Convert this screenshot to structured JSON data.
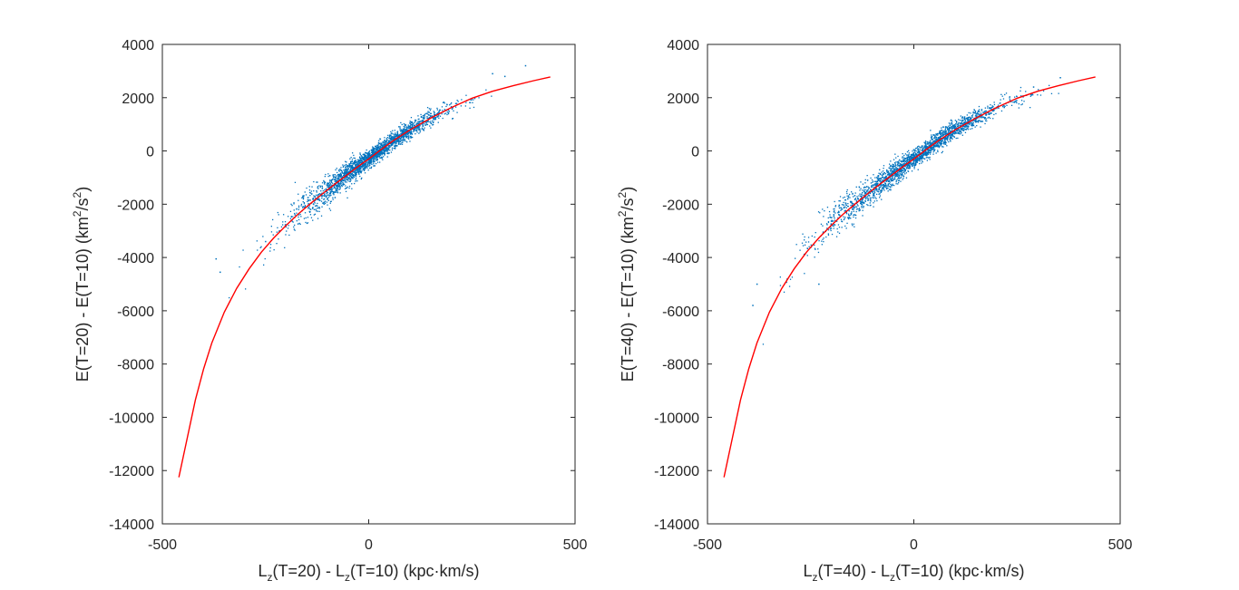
{
  "chart_data": [
    {
      "type": "scatter",
      "xlabel_parts": [
        "L",
        "z",
        "(T=20) - L",
        "z",
        "(T=10) (kpc·km/s)"
      ],
      "ylabel_parts": [
        "E(T=20) - E(T=10) (km",
        "2",
        "/s",
        "2",
        ")"
      ],
      "xlim": [
        -500,
        500
      ],
      "ylim": [
        -14000,
        4000
      ],
      "xticks": [
        -500,
        0,
        500
      ],
      "yticks": [
        -14000,
        -12000,
        -10000,
        -8000,
        -6000,
        -4000,
        -2000,
        0,
        2000,
        4000
      ],
      "xtick_labels": [
        "-500",
        "0",
        "500"
      ],
      "ytick_labels": [
        "-14000",
        "-12000",
        "-10000",
        "-8000",
        "-6000",
        "-4000",
        "-2000",
        "0",
        "2000",
        "4000"
      ],
      "grid": false,
      "series": [
        {
          "name": "particles",
          "kind": "scatter",
          "color": "#0072BD",
          "x_range": [
            -370,
            380
          ],
          "density_sigma_x": 90,
          "scatter": [
            {
              "x": -370,
              "y": -4050
            },
            {
              "x": -360,
              "y": -4550
            },
            {
              "x": -250,
              "y": -3400
            },
            {
              "x": 300,
              "y": 2900
            },
            {
              "x": 380,
              "y": 3200
            },
            {
              "x": 330,
              "y": 2800
            }
          ]
        },
        {
          "name": "fit",
          "kind": "line",
          "color": "#FF0000",
          "x": [
            -460,
            -440,
            -420,
            -400,
            -380,
            -350,
            -320,
            -290,
            -260,
            -230,
            -200,
            -170,
            -140,
            -110,
            -80,
            -50,
            -20,
            0,
            30,
            60,
            100,
            150,
            200,
            250,
            300,
            350,
            400,
            440
          ],
          "y": [
            -12250,
            -10800,
            -9350,
            -8180,
            -7200,
            -6050,
            -5160,
            -4430,
            -3800,
            -3260,
            -2790,
            -2360,
            -1960,
            -1580,
            -1220,
            -870,
            -520,
            -300,
            50,
            390,
            790,
            1230,
            1630,
            1980,
            2240,
            2450,
            2640,
            2780
          ]
        }
      ]
    },
    {
      "type": "scatter",
      "xlabel_parts": [
        "L",
        "z",
        "(T=40) - L",
        "z",
        "(T=10) (kpc·km/s)"
      ],
      "ylabel_parts": [
        "E(T=40) - E(T=10) (km",
        "2",
        "/s",
        "2",
        ")"
      ],
      "xlim": [
        -500,
        500
      ],
      "ylim": [
        -14000,
        4000
      ],
      "xticks": [
        -500,
        0,
        500
      ],
      "yticks": [
        -14000,
        -12000,
        -10000,
        -8000,
        -6000,
        -4000,
        -2000,
        0,
        2000,
        4000
      ],
      "xtick_labels": [
        "-500",
        "0",
        "500"
      ],
      "ytick_labels": [
        "-14000",
        "-12000",
        "-10000",
        "-8000",
        "-6000",
        "-4000",
        "-2000",
        "0",
        "2000",
        "4000"
      ],
      "grid": false,
      "series": [
        {
          "name": "particles",
          "kind": "scatter",
          "color": "#0072BD",
          "x_range": [
            -400,
            370
          ],
          "density_sigma_x": 110,
          "scatter": [
            {
              "x": -390,
              "y": -5800
            },
            {
              "x": -380,
              "y": -5000
            },
            {
              "x": -230,
              "y": -5000
            },
            {
              "x": 355,
              "y": 2750
            },
            {
              "x": 290,
              "y": 2400
            }
          ]
        },
        {
          "name": "fit",
          "kind": "line",
          "color": "#FF0000",
          "x": [
            -460,
            -440,
            -420,
            -400,
            -380,
            -350,
            -320,
            -290,
            -260,
            -230,
            -200,
            -170,
            -140,
            -110,
            -80,
            -50,
            -20,
            0,
            30,
            60,
            100,
            150,
            200,
            250,
            300,
            350,
            400,
            440
          ],
          "y": [
            -12250,
            -10800,
            -9350,
            -8180,
            -7200,
            -6050,
            -5160,
            -4430,
            -3800,
            -3260,
            -2790,
            -2360,
            -1960,
            -1580,
            -1220,
            -870,
            -520,
            -300,
            50,
            390,
            790,
            1230,
            1630,
            1980,
            2240,
            2450,
            2640,
            2780
          ]
        }
      ]
    }
  ]
}
